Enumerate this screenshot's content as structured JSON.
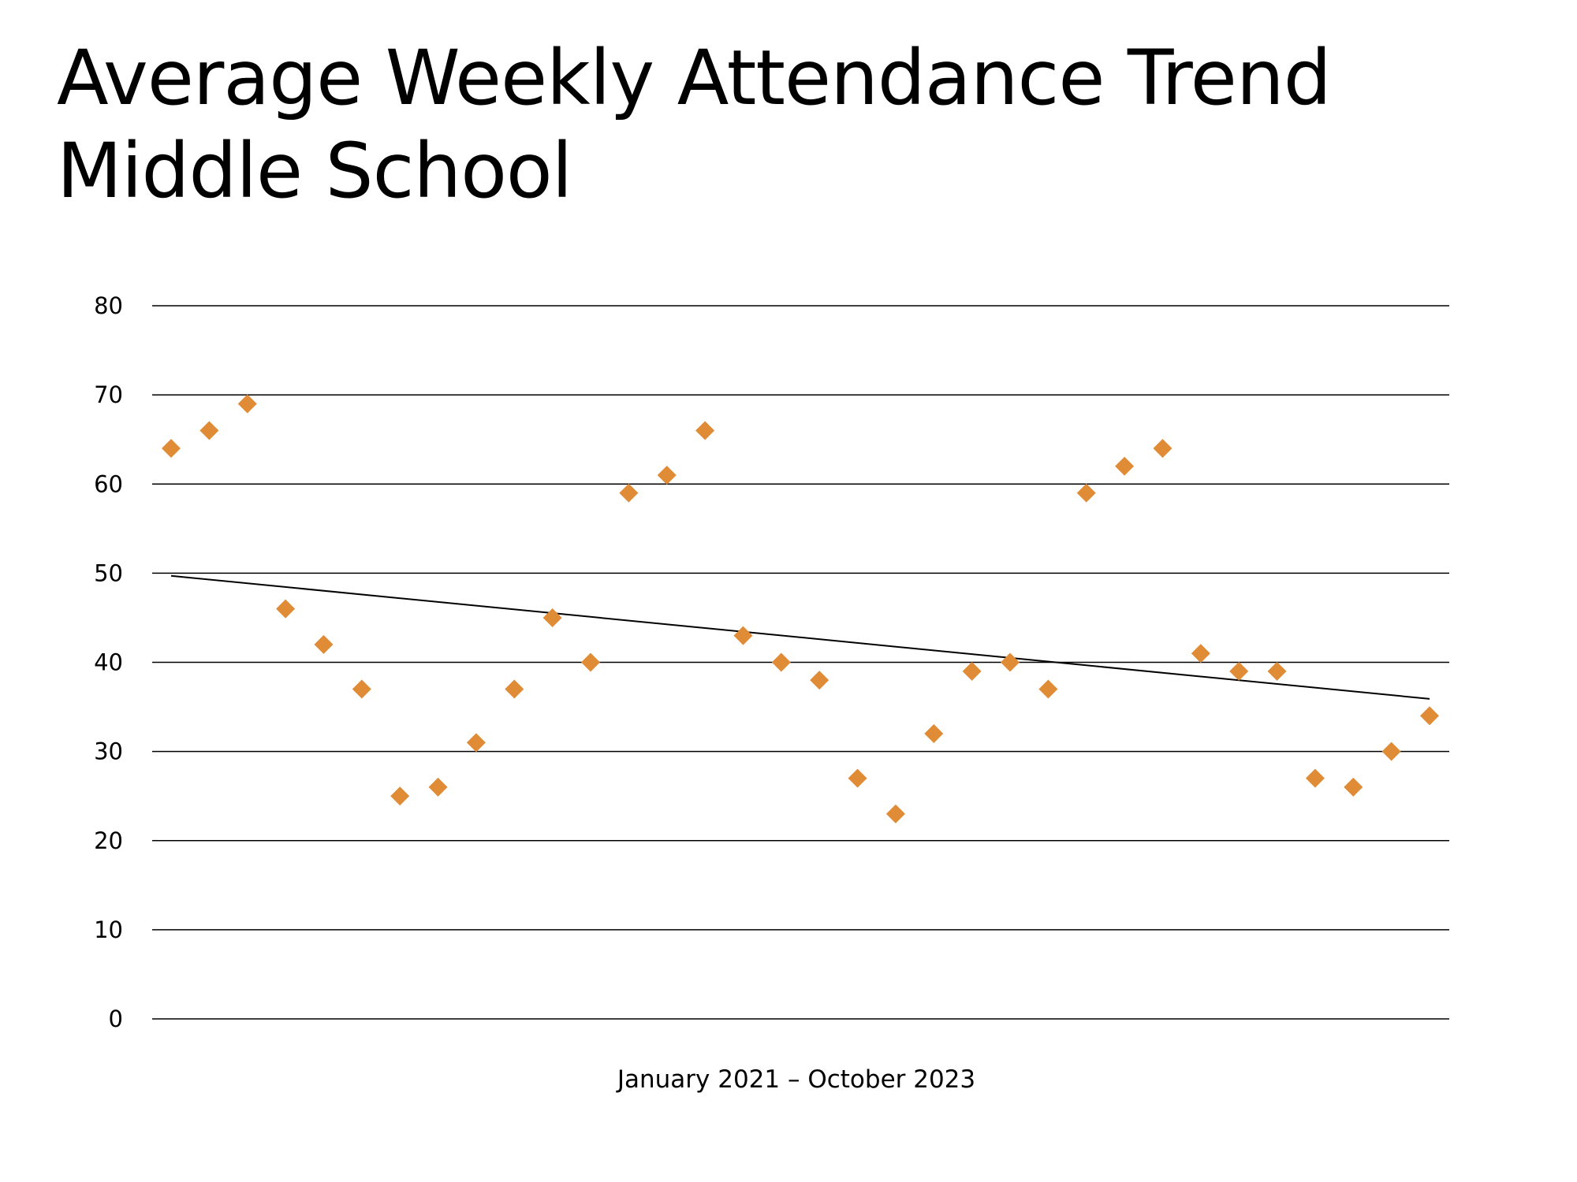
{
  "slide": {
    "title_line1": "Average Weekly Attendance Trend",
    "title_line2": "Middle School"
  },
  "chart_data": {
    "type": "scatter",
    "title": "Average Weekly Attendance Trend Middle School",
    "xlabel": "January 2021 – October 2023",
    "ylabel": "",
    "ylim": [
      0,
      80
    ],
    "yticks": [
      0,
      10,
      20,
      30,
      40,
      50,
      60,
      70,
      80
    ],
    "grid": true,
    "legend": "none",
    "marker": "diamond",
    "marker_color": "#e08b36",
    "series": [
      {
        "name": "Average Weekly Attendance",
        "x": [
          1,
          2,
          3,
          4,
          5,
          6,
          7,
          8,
          9,
          10,
          11,
          12,
          13,
          14,
          15,
          16,
          17,
          18,
          19,
          20,
          21,
          22,
          23,
          24,
          25,
          26,
          27,
          28,
          29,
          30,
          31,
          32,
          33,
          34
        ],
        "values": [
          64,
          66,
          69,
          46,
          42,
          37,
          25,
          26,
          31,
          37,
          45,
          40,
          59,
          61,
          66,
          43,
          40,
          38,
          27,
          23,
          32,
          39,
          40,
          37,
          59,
          62,
          64,
          41,
          39,
          39,
          27,
          26,
          30,
          34
        ]
      }
    ],
    "trendline": {
      "type": "linear",
      "start": 49.7,
      "end": 35.9,
      "color": "#000000"
    }
  }
}
